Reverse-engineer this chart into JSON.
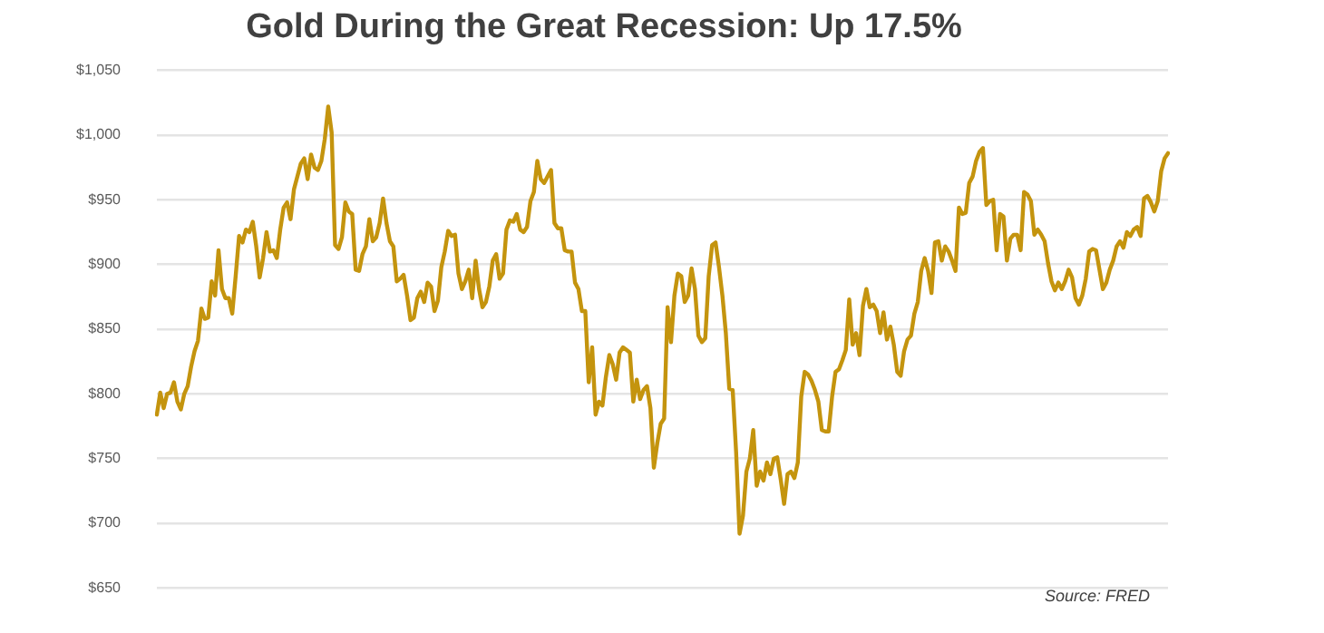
{
  "chart_data": {
    "type": "line",
    "title": "Gold During the Great Recession: Up 17.5%",
    "annotations": [
      "Source: FRED"
    ],
    "categories": [
      null,
      null,
      null,
      null,
      null,
      null,
      null,
      null,
      null,
      null,
      null,
      null,
      null,
      null,
      null,
      null,
      null,
      null,
      null,
      null,
      null,
      null,
      null,
      null,
      null,
      null,
      null,
      null,
      null,
      null,
      null,
      null,
      null,
      null,
      null,
      null,
      null,
      null,
      null,
      null,
      null,
      null,
      null,
      null,
      null,
      null,
      null,
      null,
      null,
      null,
      null,
      null,
      null,
      null,
      null,
      null,
      null,
      null,
      null,
      null,
      null,
      null,
      null,
      null,
      null,
      null,
      null,
      null,
      null,
      null,
      null,
      null,
      null,
      null,
      null,
      null,
      null,
      null,
      null,
      null,
      null,
      null,
      null,
      null,
      null,
      null,
      null,
      null,
      null,
      null,
      null,
      null,
      null,
      null,
      null,
      null,
      null,
      null,
      null,
      null,
      null,
      null,
      null,
      null,
      null,
      null,
      null,
      null,
      null,
      null,
      null,
      null,
      null,
      null,
      null,
      null,
      null,
      null,
      null,
      null,
      null,
      null,
      null,
      null,
      null,
      null,
      null,
      null,
      null,
      null,
      null,
      null,
      null,
      null,
      null,
      null,
      null,
      null,
      null,
      null,
      null,
      null,
      null,
      null,
      null,
      null,
      null,
      null,
      null,
      null,
      null,
      null,
      null,
      null,
      null,
      null,
      null,
      null,
      null,
      null,
      null,
      null,
      null,
      null,
      null,
      null,
      null,
      null,
      null,
      null,
      null,
      null,
      null,
      null,
      null,
      null,
      null,
      null,
      null,
      null,
      null,
      null,
      null,
      null,
      null,
      null,
      null,
      null,
      null,
      null,
      null,
      null,
      null,
      null,
      null,
      null,
      null,
      null,
      null,
      null,
      null,
      null,
      null,
      null,
      null,
      null,
      null,
      null,
      null,
      null,
      null,
      null,
      null,
      null,
      null,
      null,
      null,
      null,
      null,
      null,
      null,
      null,
      null,
      null,
      null,
      null,
      null,
      null,
      null,
      null,
      null,
      null,
      null,
      null,
      null,
      null,
      null,
      null,
      null,
      null,
      null,
      null,
      null,
      null,
      null,
      null,
      null,
      null,
      null,
      null,
      null,
      null,
      null,
      null,
      null,
      null,
      null,
      null,
      null,
      null,
      null,
      null,
      null,
      null,
      null,
      null,
      null,
      null,
      null,
      null,
      null,
      null,
      null,
      null,
      null,
      null,
      null,
      null,
      null,
      null,
      null,
      null,
      null,
      null,
      null,
      null,
      null,
      null,
      null,
      null,
      null,
      null,
      null,
      null,
      null,
      null
    ],
    "series": [
      {
        "color": "#c4940e",
        "values": [
          784,
          801,
          789,
          800,
          801,
          809,
          794,
          788,
          800,
          806,
          821,
          833,
          841,
          866,
          858,
          859,
          887,
          876,
          911,
          881,
          874,
          874,
          862,
          891,
          922,
          917,
          927,
          925,
          933,
          914,
          890,
          905,
          925,
          910,
          911,
          905,
          927,
          944,
          948,
          935,
          958,
          968,
          978,
          982,
          966,
          985,
          975,
          973,
          980,
          997,
          1022,
          1002,
          915,
          912,
          921,
          948,
          941,
          939,
          896,
          895,
          908,
          914,
          935,
          918,
          921,
          932,
          951,
          932,
          918,
          914,
          887,
          889,
          892,
          876,
          857,
          859,
          874,
          879,
          871,
          886,
          883,
          864,
          872,
          898,
          910,
          926,
          922,
          923,
          893,
          881,
          887,
          896,
          874,
          903,
          881,
          867,
          871,
          883,
          903,
          908,
          889,
          893,
          927,
          934,
          933,
          939,
          927,
          925,
          929,
          949,
          956,
          980,
          966,
          963,
          968,
          973,
          932,
          928,
          928,
          911,
          910,
          910,
          886,
          881,
          864,
          864,
          809,
          836,
          784,
          794,
          791,
          813,
          830,
          823,
          811,
          832,
          836,
          834,
          832,
          794,
          811,
          796,
          803,
          806,
          789,
          743,
          762,
          777,
          781,
          867,
          840,
          876,
          893,
          891,
          871,
          876,
          897,
          881,
          845,
          840,
          843,
          891,
          915,
          917,
          898,
          876,
          847,
          804,
          803,
          755,
          692,
          706,
          740,
          750,
          772,
          729,
          740,
          733,
          747,
          738,
          750,
          751,
          734,
          715,
          738,
          740,
          735,
          747,
          798,
          817,
          815,
          810,
          803,
          794,
          772,
          771,
          771,
          798,
          817,
          819,
          826,
          834,
          873,
          838,
          847,
          830,
          868,
          881,
          867,
          869,
          864,
          847,
          863,
          842,
          852,
          838,
          817,
          814,
          833,
          842,
          845,
          862,
          871,
          895,
          905,
          895,
          878,
          917,
          918,
          903,
          914,
          910,
          903,
          895,
          944,
          939,
          940,
          963,
          968,
          980,
          987,
          990,
          946,
          949,
          950,
          911,
          939,
          937,
          903,
          920,
          923,
          923,
          911,
          956,
          954,
          949,
          923,
          927,
          923,
          918,
          901,
          887,
          880,
          886,
          881,
          887,
          896,
          890,
          874,
          869,
          876,
          889,
          910,
          912,
          911,
          896,
          881,
          886,
          896,
          903,
          914,
          918,
          913,
          925,
          922,
          927,
          929,
          922,
          951,
          953,
          948,
          941,
          949,
          972,
          982,
          986
        ]
      }
    ],
    "ylim": [
      650,
      1050
    ],
    "yticks": [
      {
        "value": 650,
        "label": "$650"
      },
      {
        "value": 700,
        "label": "$700"
      },
      {
        "value": 750,
        "label": "$750"
      },
      {
        "value": 800,
        "label": "$800"
      },
      {
        "value": 850,
        "label": "$850"
      },
      {
        "value": 900,
        "label": "$900"
      },
      {
        "value": 950,
        "label": "$950"
      },
      {
        "value": 1000,
        "label": "$1,000"
      },
      {
        "value": 1050,
        "label": "$1,050"
      }
    ],
    "grid": "y",
    "legend": false,
    "marker": "none",
    "line_style": "solid"
  }
}
